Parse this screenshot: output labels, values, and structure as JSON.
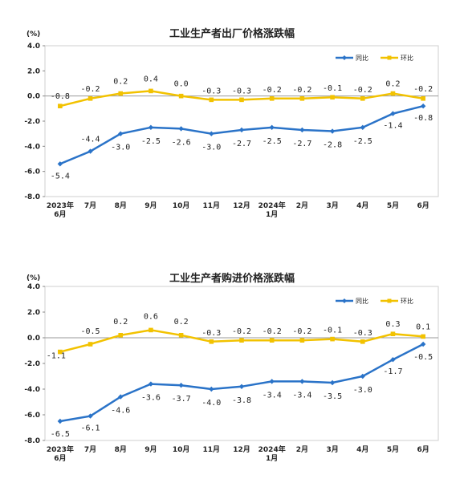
{
  "chart_data": [
    {
      "type": "line",
      "title": "工业生产者出厂价格涨跌幅",
      "unit": "(%)",
      "ylim": [
        -8.0,
        4.0
      ],
      "yticks": [
        "4.0",
        "2.0",
        "0.0",
        "-2.0",
        "-4.0",
        "-6.0",
        "-8.0"
      ],
      "categories": [
        "2023年\n6月",
        "7月",
        "8月",
        "9月",
        "10月",
        "11月",
        "12月",
        "2024年\n1月",
        "2月",
        "3月",
        "4月",
        "5月",
        "6月"
      ],
      "legend_position": "top-right",
      "series": [
        {
          "name": "同比",
          "color": "#2a73c8",
          "marker": "diamond",
          "values": [
            -5.4,
            -4.4,
            -3.0,
            -2.5,
            -2.6,
            -3.0,
            -2.7,
            -2.5,
            -2.7,
            -2.8,
            -2.5,
            -1.4,
            -0.8
          ],
          "labels": [
            "-5.4",
            "-4.4",
            "-3.0",
            "-2.5",
            "-2.6",
            "-3.0",
            "-2.7",
            "-2.5",
            "-2.7",
            "-2.8",
            "-2.5",
            "-1.4",
            "-0.8"
          ]
        },
        {
          "name": "环比",
          "color": "#f2c200",
          "marker": "square",
          "values": [
            -0.8,
            -0.2,
            0.2,
            0.4,
            0.0,
            -0.3,
            -0.3,
            -0.2,
            -0.2,
            -0.1,
            -0.2,
            0.2,
            -0.2
          ],
          "labels": [
            "-0.8",
            "-0.2",
            "0.2",
            "0.4",
            "0.0",
            "-0.3",
            "-0.3",
            "-0.2",
            "-0.2",
            "-0.1",
            "-0.2",
            "0.2",
            "-0.2"
          ]
        }
      ]
    },
    {
      "type": "line",
      "title": "工业生产者购进价格涨跌幅",
      "unit": "(%)",
      "ylim": [
        -8.0,
        4.0
      ],
      "yticks": [
        "4.0",
        "2.0",
        "0.0",
        "-2.0",
        "-4.0",
        "-6.0",
        "-8.0"
      ],
      "categories": [
        "2023年\n6月",
        "7月",
        "8月",
        "9月",
        "10月",
        "11月",
        "12月",
        "2024年\n1月",
        "2月",
        "3月",
        "4月",
        "5月",
        "6月"
      ],
      "legend_position": "top-right",
      "series": [
        {
          "name": "同比",
          "color": "#2a73c8",
          "marker": "diamond",
          "values": [
            -6.5,
            -6.1,
            -4.6,
            -3.6,
            -3.7,
            -4.0,
            -3.8,
            -3.4,
            -3.4,
            -3.5,
            -3.0,
            -1.7,
            -0.5
          ],
          "labels": [
            "-6.5",
            "-6.1",
            "-4.6",
            "-3.6",
            "-3.7",
            "-4.0",
            "-3.8",
            "-3.4",
            "-3.4",
            "-3.5",
            "-3.0",
            "-1.7",
            "-0.5"
          ]
        },
        {
          "name": "环比",
          "color": "#f2c200",
          "marker": "square",
          "values": [
            -1.1,
            -0.5,
            0.2,
            0.6,
            0.2,
            -0.3,
            -0.2,
            -0.2,
            -0.2,
            -0.1,
            -0.3,
            0.3,
            0.1
          ],
          "labels": [
            "-1.1",
            "-0.5",
            "0.2",
            "0.6",
            "0.2",
            "-0.3",
            "-0.2",
            "-0.2",
            "-0.2",
            "-0.1",
            "-0.3",
            "0.3",
            "0.1"
          ]
        }
      ]
    }
  ]
}
